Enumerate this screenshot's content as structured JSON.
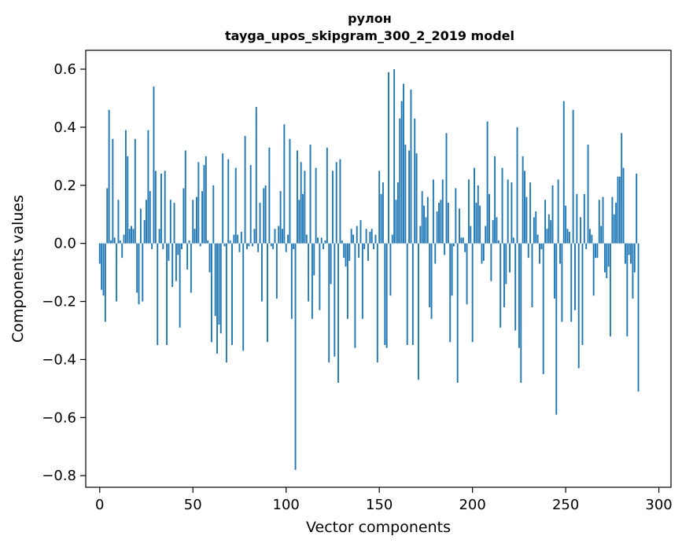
{
  "chart_data": {
    "type": "bar",
    "title_line1": "рулон",
    "title_line2": "tayga_upos_skipgram_300_2_2019 model",
    "xlabel": "Vector components",
    "ylabel": "Components values",
    "xlim": [
      -7.5,
      306.5
    ],
    "ylim": [
      -0.84,
      0.665
    ],
    "x_ticks": [
      0,
      50,
      100,
      150,
      200,
      250,
      300
    ],
    "y_ticks": [
      -0.8,
      -0.6,
      -0.4,
      -0.2,
      0.0,
      0.2,
      0.4,
      0.6
    ],
    "y_tick_labels": [
      "−0.8",
      "−0.6",
      "−0.4",
      "−0.2",
      "0.0",
      "0.2",
      "0.4",
      "0.6"
    ],
    "bar_color": "#1f77b4",
    "grid": false,
    "values": [
      -0.07,
      -0.16,
      -0.18,
      -0.27,
      0.19,
      0.46,
      0.01,
      0.36,
      0.02,
      -0.2,
      0.15,
      0.01,
      -0.05,
      0.03,
      0.39,
      0.3,
      0.05,
      0.06,
      0.05,
      0.36,
      -0.17,
      -0.21,
      0.12,
      -0.2,
      0.08,
      0.15,
      0.39,
      0.18,
      -0.02,
      0.54,
      0.25,
      -0.35,
      0.05,
      0.24,
      -0.02,
      0.25,
      -0.35,
      -0.06,
      0.15,
      -0.15,
      0.14,
      -0.13,
      -0.04,
      -0.29,
      -0.02,
      0.19,
      0.32,
      -0.09,
      0.01,
      -0.17,
      0.15,
      0.05,
      0.16,
      0.28,
      -0.01,
      0.18,
      0.27,
      0.3,
      0.01,
      -0.1,
      -0.34,
      0.2,
      -0.25,
      -0.38,
      -0.28,
      -0.31,
      0.31,
      -0.01,
      -0.41,
      0.29,
      0.01,
      -0.35,
      0.03,
      0.26,
      0.03,
      -0.03,
      0.04,
      -0.37,
      0.37,
      -0.02,
      -0.01,
      0.27,
      -0.01,
      0.05,
      0.47,
      -0.03,
      0.14,
      -0.2,
      0.19,
      0.2,
      -0.34,
      0.33,
      -0.01,
      -0.02,
      0.05,
      -0.19,
      0.06,
      0.18,
      0.05,
      0.41,
      -0.03,
      0.03,
      0.36,
      -0.26,
      -0.02,
      -0.78,
      0.32,
      0.15,
      0.28,
      0.17,
      0.25,
      0.03,
      -0.2,
      0.34,
      -0.26,
      -0.11,
      0.26,
      0.02,
      -0.23,
      0.02,
      -0.02,
      0.01,
      0.33,
      -0.41,
      -0.14,
      0.25,
      -0.39,
      0.28,
      -0.48,
      0.29,
      0.01,
      -0.05,
      -0.08,
      -0.26,
      -0.06,
      0.05,
      0.03,
      -0.36,
      0.06,
      -0.05,
      0.08,
      -0.26,
      -0.02,
      0.05,
      -0.06,
      0.04,
      0.05,
      -0.02,
      0.03,
      -0.41,
      0.25,
      0.17,
      0.21,
      -0.35,
      -0.36,
      0.59,
      -0.18,
      0.03,
      0.6,
      0.15,
      0.21,
      0.43,
      0.49,
      0.55,
      0.34,
      -0.35,
      0.32,
      0.53,
      -0.35,
      0.43,
      0.31,
      -0.47,
      0.06,
      0.18,
      0.13,
      0.09,
      0.16,
      -0.22,
      -0.26,
      0.22,
      -0.07,
      0.11,
      0.14,
      0.15,
      0.22,
      -0.04,
      0.38,
      0.14,
      -0.34,
      -0.18,
      -0.01,
      0.19,
      -0.48,
      0.12,
      0.02,
      0.02,
      -0.03,
      -0.21,
      0.22,
      0.06,
      -0.34,
      0.26,
      0.14,
      0.2,
      0.13,
      -0.07,
      -0.06,
      0.06,
      0.42,
      0.17,
      -0.13,
      0.08,
      0.3,
      0.09,
      0.01,
      -0.29,
      0.26,
      -0.22,
      -0.14,
      0.22,
      -0.1,
      0.21,
      0.02,
      -0.3,
      0.4,
      -0.36,
      -0.48,
      0.3,
      0.25,
      0.16,
      -0.05,
      0.21,
      -0.22,
      0.09,
      0.11,
      0.03,
      -0.07,
      -0.02,
      -0.45,
      0.15,
      0.05,
      0.1,
      0.08,
      0.2,
      -0.19,
      -0.59,
      0.22,
      -0.07,
      -0.27,
      0.49,
      0.13,
      0.05,
      0.04,
      -0.27,
      0.46,
      -0.23,
      0.17,
      -0.43,
      0.09,
      -0.35,
      0.17,
      -0.02,
      0.34,
      0.05,
      0.03,
      -0.18,
      -0.05,
      -0.05,
      0.15,
      0.06,
      0.16,
      -0.1,
      -0.12,
      -0.08,
      -0.32,
      0.16,
      0.1,
      0.14,
      0.23,
      0.23,
      0.38,
      0.26,
      -0.07,
      -0.32,
      -0.04,
      -0.07,
      -0.19,
      -0.1,
      0.24,
      -0.51
    ]
  }
}
